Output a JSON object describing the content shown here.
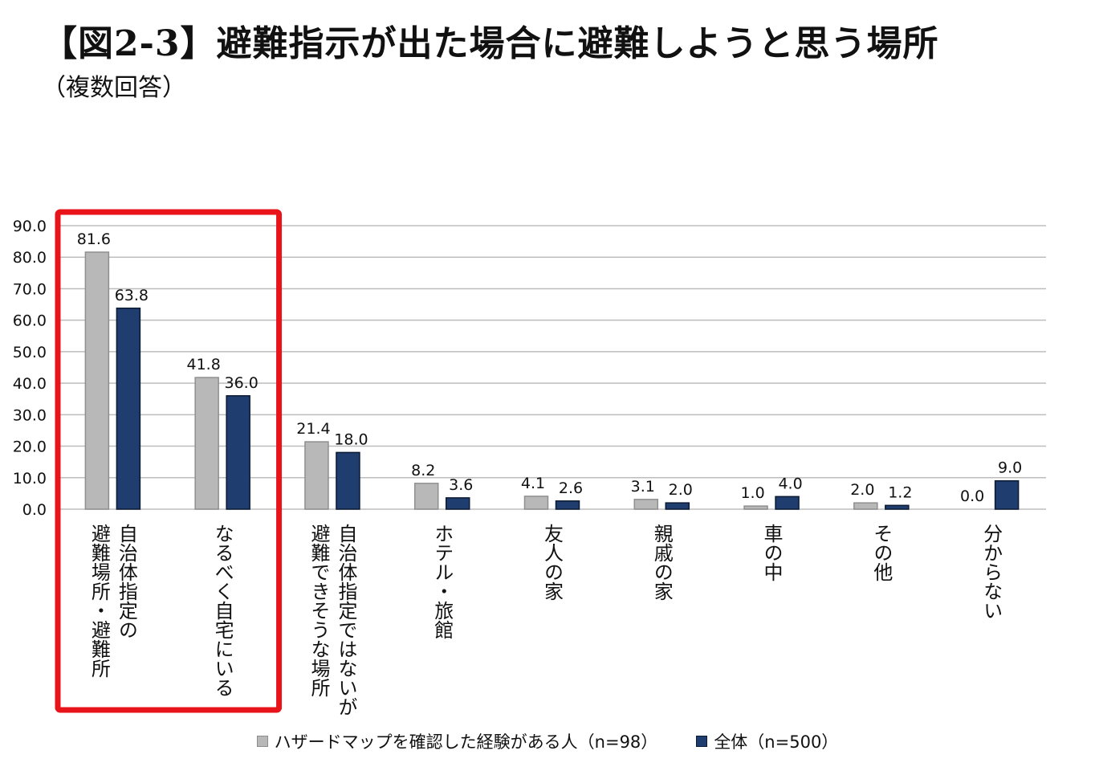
{
  "header": {
    "title": "【図2-3】避難指示が出た場合に避難しようと思う場所",
    "subtitle": "（複数回答）"
  },
  "chart_data": {
    "type": "bar",
    "title": "【図2-3】避難指示が出た場合に避難しようと思う場所",
    "subtitle": "（複数回答）",
    "xlabel": "",
    "ylabel": "",
    "ylim": [
      0,
      90
    ],
    "yticks": [
      "0.0",
      "10.0",
      "20.0",
      "30.0",
      "40.0",
      "50.0",
      "60.0",
      "70.0",
      "80.0",
      "90.0"
    ],
    "grid": true,
    "legend_position": "bottom",
    "highlight": {
      "categories": [
        0,
        1
      ],
      "color": "#e8141a"
    },
    "categories": [
      [
        "自治体指定の",
        "避難場所・避難所"
      ],
      [
        "なるべく自宅にいる"
      ],
      [
        "自治体指定ではないが",
        "避難できそうな場所"
      ],
      [
        "ホテル・旅館"
      ],
      [
        "友人の家"
      ],
      [
        "親戚の家"
      ],
      [
        "車の中"
      ],
      [
        "その他"
      ],
      [
        "分からない"
      ]
    ],
    "series": [
      {
        "name": "ハザードマップを確認した経験がある人（n=98）",
        "color": "#b8b8b8",
        "values": [
          81.6,
          41.8,
          21.4,
          8.2,
          4.1,
          3.1,
          1.0,
          2.0,
          0.0
        ],
        "labels": [
          "81.6",
          "41.8",
          "21.4",
          "8.2",
          "4.1",
          "3.1",
          "1.0",
          "2.0",
          "0.0"
        ]
      },
      {
        "name": "全体（n=500）",
        "color": "#1f3d6e",
        "values": [
          63.8,
          36.0,
          18.0,
          3.6,
          2.6,
          2.0,
          4.0,
          1.2,
          9.0
        ],
        "labels": [
          "63.8",
          "36.0",
          "18.0",
          "3.6",
          "2.6",
          "2.0",
          "4.0",
          "1.2",
          "9.0"
        ]
      }
    ]
  }
}
